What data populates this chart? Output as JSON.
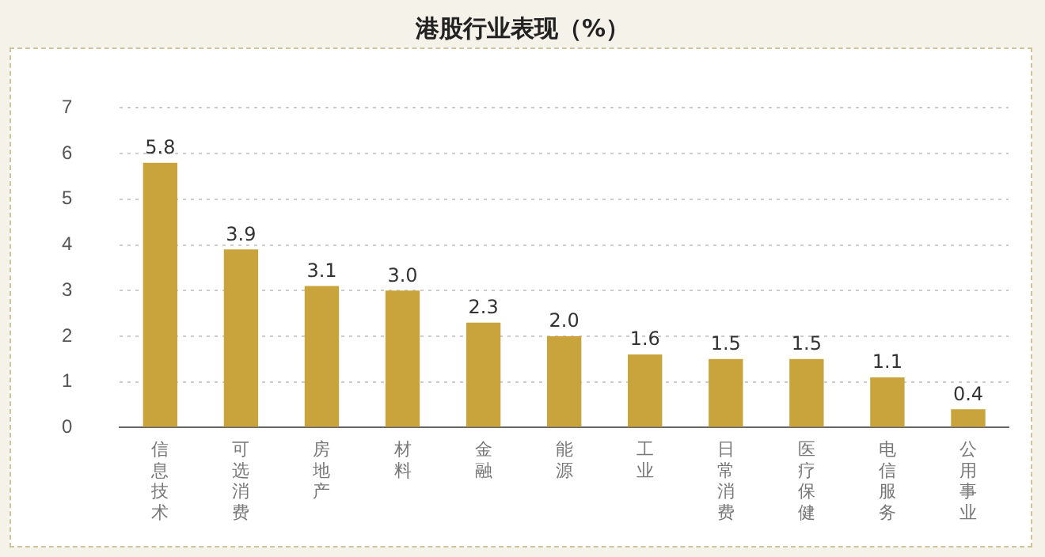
{
  "chart_data": {
    "type": "bar",
    "title": "港股行业表现（%）",
    "categories": [
      "信息技术",
      "可选消费",
      "房地产",
      "材料",
      "金融",
      "能源",
      "工业",
      "日常消费",
      "医疗保健",
      "电信服务",
      "公用事业"
    ],
    "values": [
      5.8,
      3.9,
      3.1,
      3.0,
      2.3,
      2.0,
      1.6,
      1.5,
      1.5,
      1.1,
      0.4
    ],
    "value_labels": [
      "5.8",
      "3.9",
      "3.1",
      "3.0",
      "2.3",
      "2.0",
      "1.6",
      "1.5",
      "1.5",
      "1.1",
      "0.4"
    ],
    "color": "#c9a43c",
    "ylim": [
      0,
      7
    ],
    "yticks": [
      0,
      1,
      2,
      3,
      4,
      5,
      6,
      7
    ],
    "grid": "y",
    "legend": false
  }
}
